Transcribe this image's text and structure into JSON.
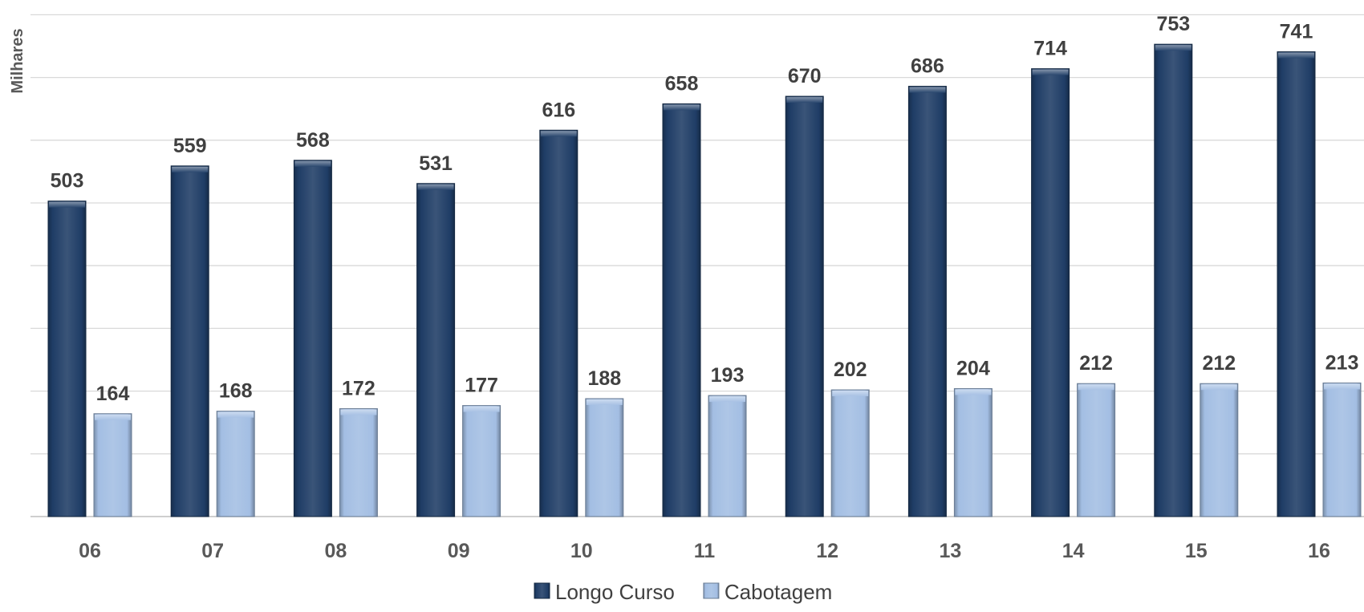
{
  "chart_data": {
    "type": "bar",
    "title": "",
    "xlabel": "",
    "ylabel": "Milhares",
    "categories": [
      "06",
      "07",
      "08",
      "09",
      "10",
      "11",
      "12",
      "13",
      "14",
      "15",
      "16"
    ],
    "series": [
      {
        "name": "Longo Curso",
        "color": "#1f3d66",
        "values": [
          503,
          559,
          568,
          531,
          616,
          658,
          670,
          686,
          714,
          753,
          741
        ]
      },
      {
        "name": "Cabotagem",
        "color": "#a3bee3",
        "values": [
          164,
          168,
          172,
          177,
          188,
          193,
          202,
          204,
          212,
          212,
          213
        ]
      }
    ],
    "ylim": [
      0,
      800
    ],
    "y_grid_step": 100,
    "grid": true,
    "y_tick_labels_shown": false,
    "legend_position": "bottom-center"
  }
}
